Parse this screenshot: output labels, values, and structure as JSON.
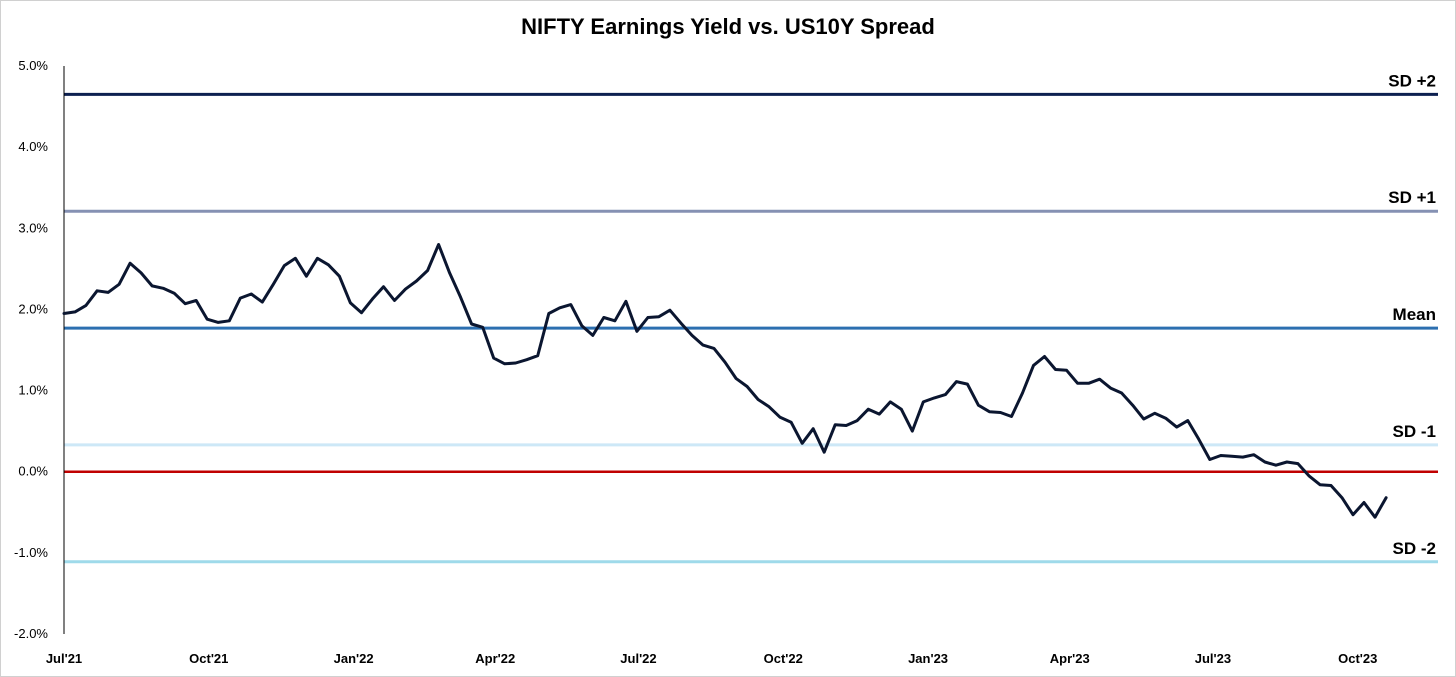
{
  "chart_data": {
    "type": "line",
    "title": "NIFTY Earnings Yield vs. US10Y Spread",
    "xlabel": "",
    "ylabel": "",
    "ylim": [
      -2.0,
      5.0
    ],
    "grid": false,
    "y_ticks": [
      "5.0%",
      "4.0%",
      "3.0%",
      "2.0%",
      "1.0%",
      "0.0%",
      "-1.0%",
      "-2.0%"
    ],
    "y_tick_values": [
      5,
      4,
      3,
      2,
      1,
      0,
      -1,
      -2
    ],
    "x_ticks": [
      {
        "label": "Jul'21",
        "date": "2021-07-01"
      },
      {
        "label": "Oct'21",
        "date": "2021-10-01"
      },
      {
        "label": "Jan'22",
        "date": "2022-01-01"
      },
      {
        "label": "Apr'22",
        "date": "2022-04-01"
      },
      {
        "label": "Jul'22",
        "date": "2022-07-01"
      },
      {
        "label": "Oct'22",
        "date": "2022-10-01"
      },
      {
        "label": "Jan'23",
        "date": "2023-01-01"
      },
      {
        "label": "Apr'23",
        "date": "2023-04-01"
      },
      {
        "label": "Jul'23",
        "date": "2023-07-01"
      },
      {
        "label": "Oct'23",
        "date": "2023-10-01"
      }
    ],
    "xlim": [
      "2021-07-01",
      "2023-11-21"
    ],
    "reference_lines": [
      {
        "label": "SD +2",
        "value": 4.65,
        "color": "#0d2050",
        "width": 3
      },
      {
        "label": "SD +1",
        "value": 3.21,
        "color": "#8591b3",
        "width": 3
      },
      {
        "label": "Mean",
        "value": 1.77,
        "color": "#2c6fb0",
        "width": 3
      },
      {
        "label": "SD -1",
        "value": 0.33,
        "color": "#cde8f7",
        "width": 3
      },
      {
        "label": "",
        "value": 0.0,
        "color": "#c00000",
        "width": 2.5
      },
      {
        "label": "SD -2",
        "value": -1.11,
        "color": "#9fdaea",
        "width": 3
      }
    ],
    "series": [
      {
        "color": "#0b1630",
        "points": [
          [
            "2021-07-01",
            1.95
          ],
          [
            "2021-07-08",
            1.97
          ],
          [
            "2021-07-15",
            2.05
          ],
          [
            "2021-07-22",
            2.23
          ],
          [
            "2021-07-29",
            2.21
          ],
          [
            "2021-08-05",
            2.31
          ],
          [
            "2021-08-12",
            2.57
          ],
          [
            "2021-08-19",
            2.45
          ],
          [
            "2021-08-26",
            2.29
          ],
          [
            "2021-09-02",
            2.26
          ],
          [
            "2021-09-09",
            2.2
          ],
          [
            "2021-09-16",
            2.07
          ],
          [
            "2021-09-23",
            2.11
          ],
          [
            "2021-09-30",
            1.88
          ],
          [
            "2021-10-07",
            1.84
          ],
          [
            "2021-10-14",
            1.86
          ],
          [
            "2021-10-21",
            2.14
          ],
          [
            "2021-10-28",
            2.19
          ],
          [
            "2021-11-04",
            2.09
          ],
          [
            "2021-11-11",
            2.31
          ],
          [
            "2021-11-18",
            2.54
          ],
          [
            "2021-11-25",
            2.63
          ],
          [
            "2021-12-02",
            2.41
          ],
          [
            "2021-12-09",
            2.63
          ],
          [
            "2021-12-16",
            2.55
          ],
          [
            "2021-12-23",
            2.41
          ],
          [
            "2021-12-30",
            2.08
          ],
          [
            "2022-01-06",
            1.96
          ],
          [
            "2022-01-13",
            2.13
          ],
          [
            "2022-01-20",
            2.28
          ],
          [
            "2022-01-27",
            2.11
          ],
          [
            "2022-02-03",
            2.25
          ],
          [
            "2022-02-10",
            2.35
          ],
          [
            "2022-02-17",
            2.48
          ],
          [
            "2022-02-24",
            2.8
          ],
          [
            "2022-03-03",
            2.45
          ],
          [
            "2022-03-10",
            2.15
          ],
          [
            "2022-03-17",
            1.82
          ],
          [
            "2022-03-24",
            1.78
          ],
          [
            "2022-03-31",
            1.4
          ],
          [
            "2022-04-07",
            1.33
          ],
          [
            "2022-04-14",
            1.34
          ],
          [
            "2022-04-21",
            1.38
          ],
          [
            "2022-04-28",
            1.43
          ],
          [
            "2022-05-05",
            1.95
          ],
          [
            "2022-05-12",
            2.02
          ],
          [
            "2022-05-19",
            2.06
          ],
          [
            "2022-05-26",
            1.8
          ],
          [
            "2022-06-02",
            1.68
          ],
          [
            "2022-06-09",
            1.9
          ],
          [
            "2022-06-16",
            1.86
          ],
          [
            "2022-06-23",
            2.1
          ],
          [
            "2022-06-30",
            1.73
          ],
          [
            "2022-07-07",
            1.9
          ],
          [
            "2022-07-14",
            1.91
          ],
          [
            "2022-07-21",
            1.99
          ],
          [
            "2022-07-28",
            1.83
          ],
          [
            "2022-08-04",
            1.68
          ],
          [
            "2022-08-11",
            1.56
          ],
          [
            "2022-08-18",
            1.52
          ],
          [
            "2022-08-25",
            1.35
          ],
          [
            "2022-09-01",
            1.15
          ],
          [
            "2022-09-08",
            1.05
          ],
          [
            "2022-09-15",
            0.89
          ],
          [
            "2022-09-22",
            0.8
          ],
          [
            "2022-09-29",
            0.67
          ],
          [
            "2022-10-06",
            0.61
          ],
          [
            "2022-10-13",
            0.35
          ],
          [
            "2022-10-20",
            0.53
          ],
          [
            "2022-10-27",
            0.24
          ],
          [
            "2022-11-03",
            0.58
          ],
          [
            "2022-11-10",
            0.57
          ],
          [
            "2022-11-17",
            0.63
          ],
          [
            "2022-11-24",
            0.77
          ],
          [
            "2022-12-01",
            0.71
          ],
          [
            "2022-12-08",
            0.86
          ],
          [
            "2022-12-15",
            0.77
          ],
          [
            "2022-12-22",
            0.5
          ],
          [
            "2022-12-29",
            0.86
          ],
          [
            "2023-01-05",
            0.91
          ],
          [
            "2023-01-12",
            0.95
          ],
          [
            "2023-01-19",
            1.11
          ],
          [
            "2023-01-26",
            1.08
          ],
          [
            "2023-02-02",
            0.82
          ],
          [
            "2023-02-09",
            0.74
          ],
          [
            "2023-02-16",
            0.73
          ],
          [
            "2023-02-23",
            0.68
          ],
          [
            "2023-03-02",
            0.97
          ],
          [
            "2023-03-09",
            1.31
          ],
          [
            "2023-03-16",
            1.42
          ],
          [
            "2023-03-23",
            1.26
          ],
          [
            "2023-03-30",
            1.25
          ],
          [
            "2023-04-06",
            1.09
          ],
          [
            "2023-04-13",
            1.09
          ],
          [
            "2023-04-20",
            1.14
          ],
          [
            "2023-04-27",
            1.03
          ],
          [
            "2023-05-04",
            0.97
          ],
          [
            "2023-05-11",
            0.82
          ],
          [
            "2023-05-18",
            0.65
          ],
          [
            "2023-05-25",
            0.72
          ],
          [
            "2023-06-01",
            0.66
          ],
          [
            "2023-06-08",
            0.55
          ],
          [
            "2023-06-15",
            0.63
          ],
          [
            "2023-06-22",
            0.4
          ],
          [
            "2023-06-29",
            0.15
          ],
          [
            "2023-07-06",
            0.2
          ],
          [
            "2023-07-13",
            0.19
          ],
          [
            "2023-07-20",
            0.18
          ],
          [
            "2023-07-27",
            0.21
          ],
          [
            "2023-08-03",
            0.12
          ],
          [
            "2023-08-10",
            0.08
          ],
          [
            "2023-08-17",
            0.12
          ],
          [
            "2023-08-24",
            0.1
          ],
          [
            "2023-08-31",
            -0.05
          ],
          [
            "2023-09-07",
            -0.16
          ],
          [
            "2023-09-14",
            -0.17
          ],
          [
            "2023-09-21",
            -0.32
          ],
          [
            "2023-09-28",
            -0.53
          ],
          [
            "2023-10-05",
            -0.38
          ],
          [
            "2023-10-12",
            -0.56
          ],
          [
            "2023-10-19",
            -0.32
          ]
        ]
      }
    ]
  }
}
